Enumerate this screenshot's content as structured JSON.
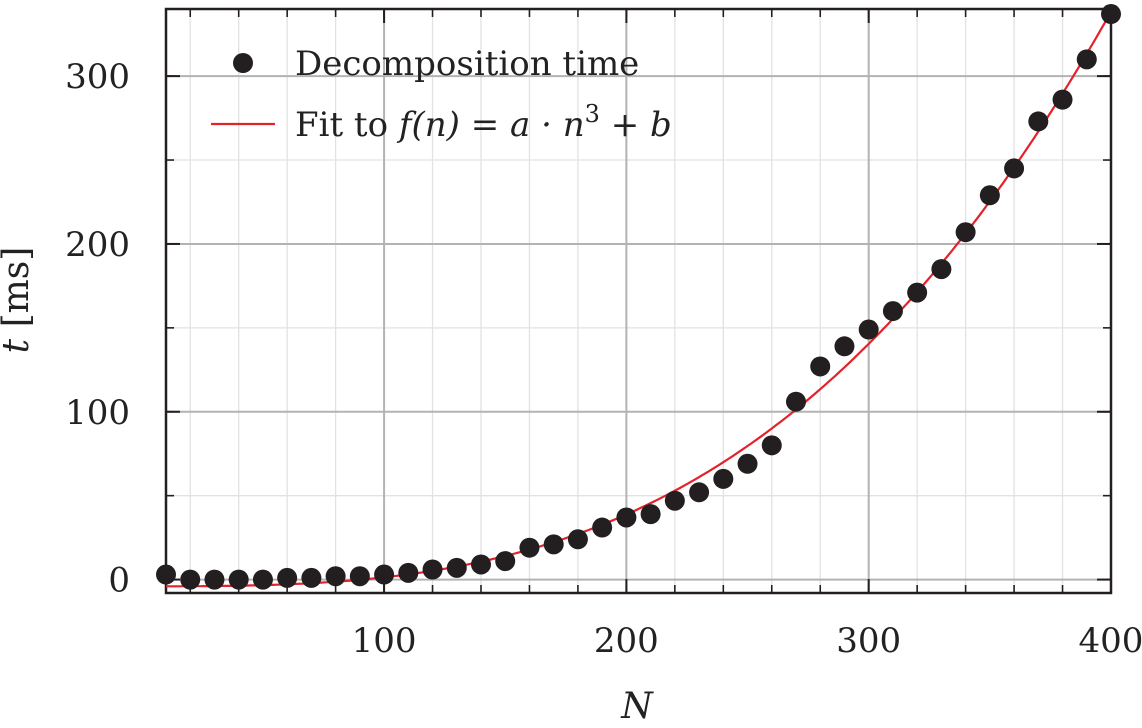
{
  "chart_data": {
    "type": "scatter",
    "xlabel": "N",
    "ylabel_var": "t",
    "ylabel_unit": "[ms]",
    "xlim": [
      10,
      400
    ],
    "ylim": [
      -8,
      340
    ],
    "xticks": [
      100,
      200,
      300,
      400
    ],
    "yticks": [
      0,
      100,
      200,
      300
    ],
    "xtick_labels": [
      "100",
      "200",
      "300",
      "400"
    ],
    "ytick_labels": [
      "0",
      "100",
      "200",
      "300"
    ],
    "x_minor_step": 20,
    "y_minor_step": 50,
    "grid": true,
    "legend_position": "top-left",
    "colors": {
      "points": "#231f20",
      "fit": "#e3222b",
      "grid_major": "#b3b3b3",
      "grid_minor": "#e2e2e2",
      "frame": "#231f20"
    },
    "series": [
      {
        "name": "Decomposition time",
        "kind": "scatter",
        "x": [
          10,
          20,
          30,
          40,
          50,
          60,
          70,
          80,
          90,
          100,
          110,
          120,
          130,
          140,
          150,
          160,
          170,
          180,
          190,
          200,
          210,
          220,
          230,
          240,
          250,
          260,
          270,
          280,
          290,
          300,
          310,
          320,
          330,
          340,
          350,
          360,
          370,
          380,
          390,
          400
        ],
        "y": [
          3,
          0,
          0,
          0,
          0,
          1,
          1,
          2,
          2,
          3,
          4,
          6,
          7,
          9,
          11,
          19,
          21,
          24,
          31,
          37,
          39,
          47,
          52,
          60,
          69,
          80,
          106,
          127,
          139,
          149,
          160,
          171,
          185,
          207,
          229,
          245,
          273,
          286,
          310,
          337
        ]
      },
      {
        "name_prefix": "Fit to ",
        "name_formula": "f(n) = a · n",
        "name_sup": "3",
        "name_suffix": " + b",
        "kind": "line",
        "model": "a*n^3+b",
        "a": 5.35e-06,
        "b": -4
      }
    ]
  }
}
